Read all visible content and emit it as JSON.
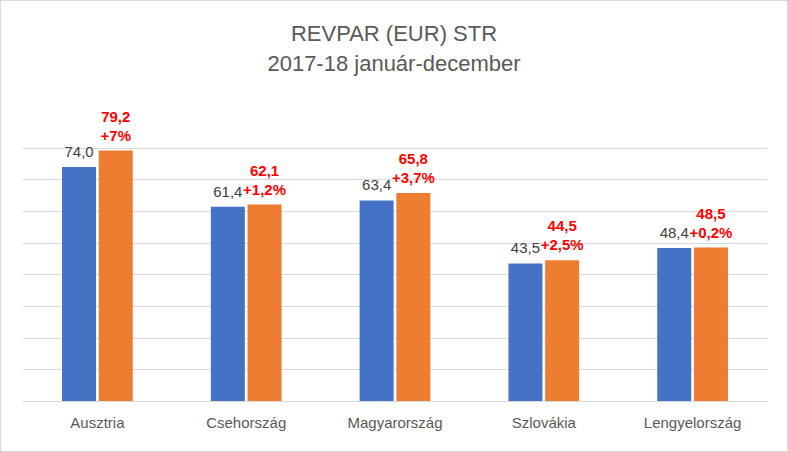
{
  "chart_data": {
    "type": "bar",
    "title": "REVPAR (EUR) STR",
    "subtitle": "2017-18 január-december",
    "categories": [
      "Ausztria",
      "Csehország",
      "Magyarország",
      "Szlovákia",
      "Lengyelország"
    ],
    "series": [
      {
        "color": "#4472c4",
        "values": [
          74.0,
          61.4,
          63.4,
          43.5,
          48.4
        ],
        "value_labels": [
          "74,0",
          "61,4",
          "63,4",
          "43,5",
          "48,4"
        ]
      },
      {
        "color": "#ed7d31",
        "values": [
          79.2,
          62.1,
          65.8,
          44.5,
          48.5
        ],
        "value_labels": [
          "79,2",
          "62,1",
          "65,8",
          "44,5",
          "48,5"
        ],
        "change_labels": [
          "+7%",
          "+1,2%",
          "+3,7%",
          "+2,5%",
          "+0,2%"
        ]
      }
    ],
    "ylim": [
      0,
      80
    ],
    "yticks": [
      0,
      10,
      20,
      30,
      40,
      50,
      60,
      70,
      80
    ],
    "grid": true,
    "data_labels": true,
    "tick_labels": "x"
  }
}
